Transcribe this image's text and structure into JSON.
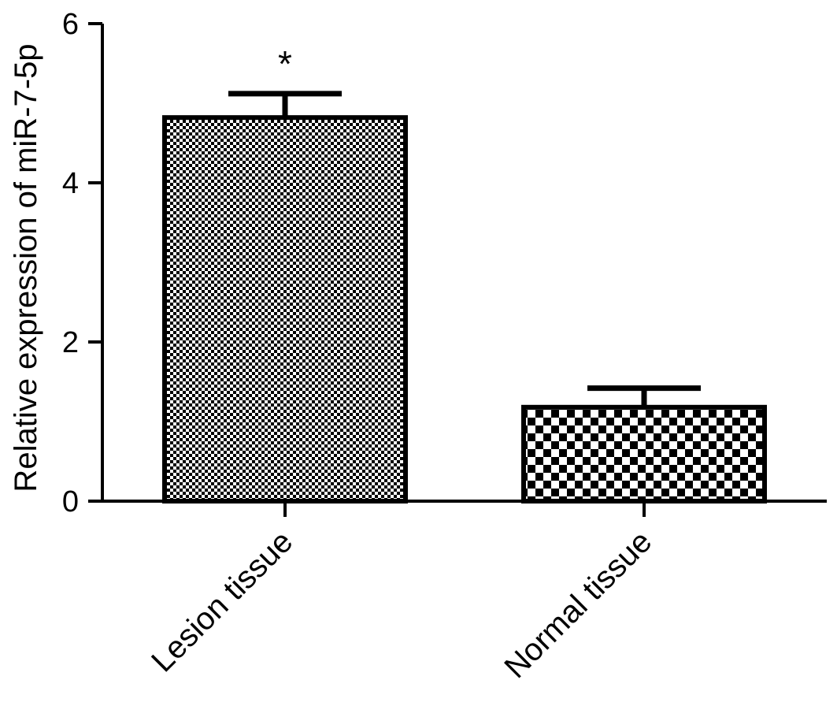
{
  "chart_data": {
    "type": "bar",
    "title": "",
    "xlabel": "",
    "ylabel": "Relative expression of miR-7-5p",
    "categories": [
      "Lesion tissue",
      "Normal tissue"
    ],
    "values": [
      4.82,
      1.18
    ],
    "error": [
      0.3,
      0.24
    ],
    "significance": [
      "*",
      ""
    ],
    "ylim": [
      0,
      6
    ],
    "yticks": [
      0,
      2,
      4,
      6
    ],
    "ytick_labels": [
      "0",
      "2",
      "4",
      "6"
    ],
    "grid": false,
    "legend": "none",
    "patterns": [
      "fine-checker",
      "coarse-checker"
    ],
    "colors": {
      "bar_fill": "#ffffff",
      "pattern": "#000000",
      "axis": "#000000"
    }
  }
}
